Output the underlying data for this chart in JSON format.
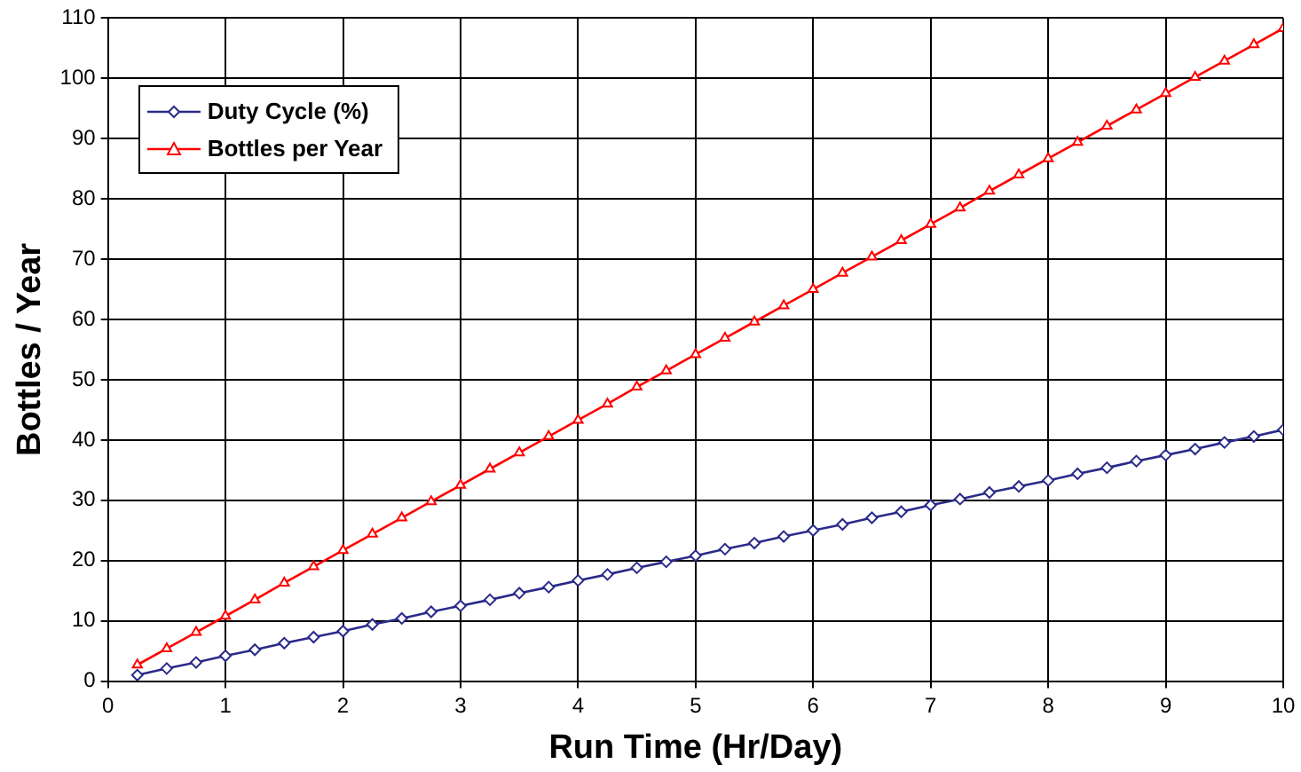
{
  "chart_data": {
    "type": "line",
    "xlabel": "Run Time (Hr/Day)",
    "ylabel": "Bottles / Year",
    "x": [
      0.25,
      0.5,
      0.75,
      1,
      1.25,
      1.5,
      1.75,
      2,
      2.25,
      2.5,
      2.75,
      3,
      3.25,
      3.5,
      3.75,
      4,
      4.25,
      4.5,
      4.75,
      5,
      5.25,
      5.5,
      5.75,
      6,
      6.25,
      6.5,
      6.75,
      7,
      7.25,
      7.5,
      7.75,
      8,
      8.25,
      8.5,
      8.75,
      9,
      9.25,
      9.5,
      9.75,
      10
    ],
    "series": [
      {
        "name": "Duty Cycle (%)",
        "color": "#2a2a8a",
        "marker": "diamond",
        "values": [
          1.0,
          2.1,
          3.1,
          4.2,
          5.2,
          6.3,
          7.3,
          8.3,
          9.4,
          10.4,
          11.5,
          12.5,
          13.5,
          14.6,
          15.6,
          16.7,
          17.7,
          18.8,
          19.8,
          20.8,
          21.9,
          22.9,
          24.0,
          25.0,
          26.0,
          27.1,
          28.1,
          29.2,
          30.2,
          31.3,
          32.3,
          33.3,
          34.4,
          35.4,
          36.5,
          37.5,
          38.5,
          39.6,
          40.6,
          41.7
        ]
      },
      {
        "name": "Bottles per Year",
        "color": "#ff0000",
        "marker": "triangle",
        "values": [
          2.7,
          5.4,
          8.1,
          10.8,
          13.5,
          16.3,
          19.0,
          21.7,
          24.4,
          27.1,
          29.8,
          32.5,
          35.2,
          37.9,
          40.6,
          43.3,
          46.0,
          48.8,
          51.5,
          54.2,
          56.9,
          59.6,
          62.3,
          65.0,
          67.7,
          70.4,
          73.1,
          75.8,
          78.5,
          81.3,
          84.0,
          86.7,
          89.4,
          92.1,
          94.8,
          97.5,
          100.2,
          102.9,
          105.6,
          108.3
        ]
      }
    ],
    "xlim": [
      0,
      10
    ],
    "xticks": [
      0,
      1,
      2,
      3,
      4,
      5,
      6,
      7,
      8,
      9,
      10
    ],
    "ylim": [
      0,
      110
    ],
    "yticks": [
      0,
      10,
      20,
      30,
      40,
      50,
      60,
      70,
      80,
      90,
      100,
      110
    ],
    "grid": true,
    "legend": "top left",
    "line_style": "solid"
  }
}
